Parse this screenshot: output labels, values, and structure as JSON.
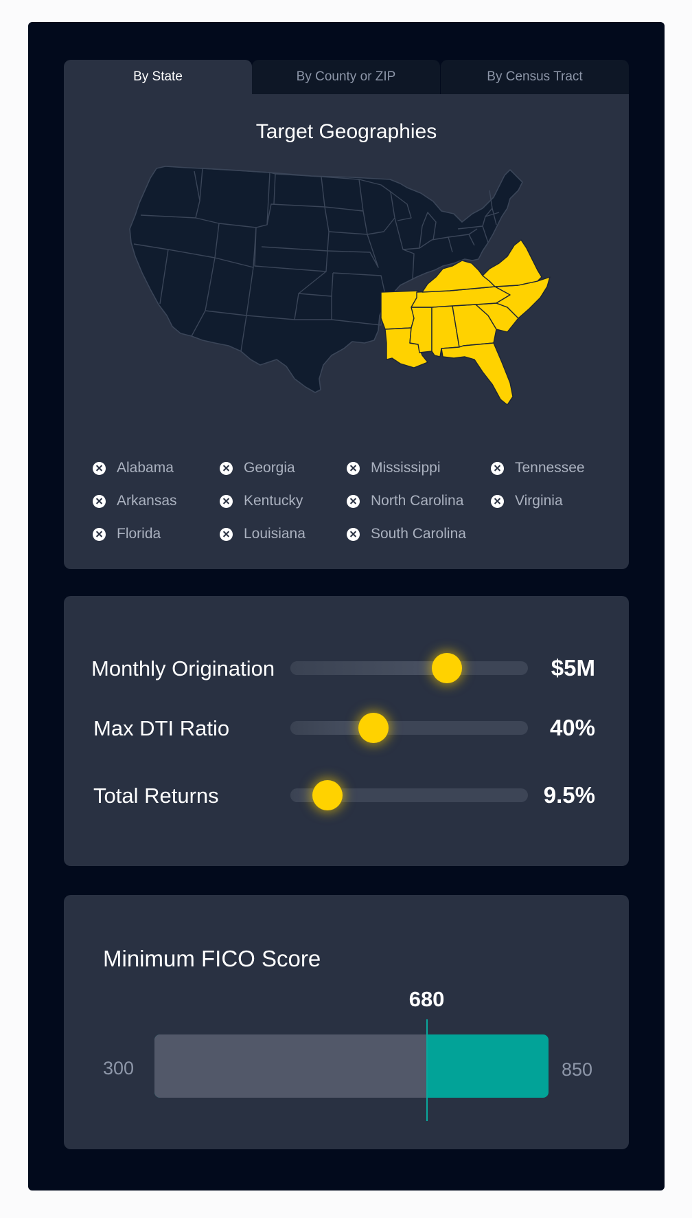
{
  "tabs": [
    {
      "label": "By State",
      "active": true
    },
    {
      "label": "By County or ZIP",
      "active": false
    },
    {
      "label": "By Census Tract",
      "active": false
    }
  ],
  "geography": {
    "title": "Target Geographies",
    "map_icon": "us-states-map",
    "selected_color": "#ffd200",
    "selected_states": [
      "Alabama",
      "Georgia",
      "Mississippi",
      "Tennessee",
      "Arkansas",
      "Kentucky",
      "North Carolina",
      "Virginia",
      "Florida",
      "Louisiana",
      "South Carolina"
    ],
    "chip_icon": "remove-icon"
  },
  "sliders": [
    {
      "label": "Monthly Origination",
      "value_text": "$5M",
      "position": 0.66
    },
    {
      "label": "Max DTI Ratio",
      "value_text": "40%",
      "position": 0.35
    },
    {
      "label": "Total Returns",
      "value_text": "9.5%",
      "position": 0.155
    }
  ],
  "fico": {
    "title": "Minimum FICO Score",
    "min": 300,
    "max": 850,
    "value": 680,
    "min_label": "300",
    "max_label": "850",
    "value_label": "680",
    "accent": "#02a398"
  }
}
